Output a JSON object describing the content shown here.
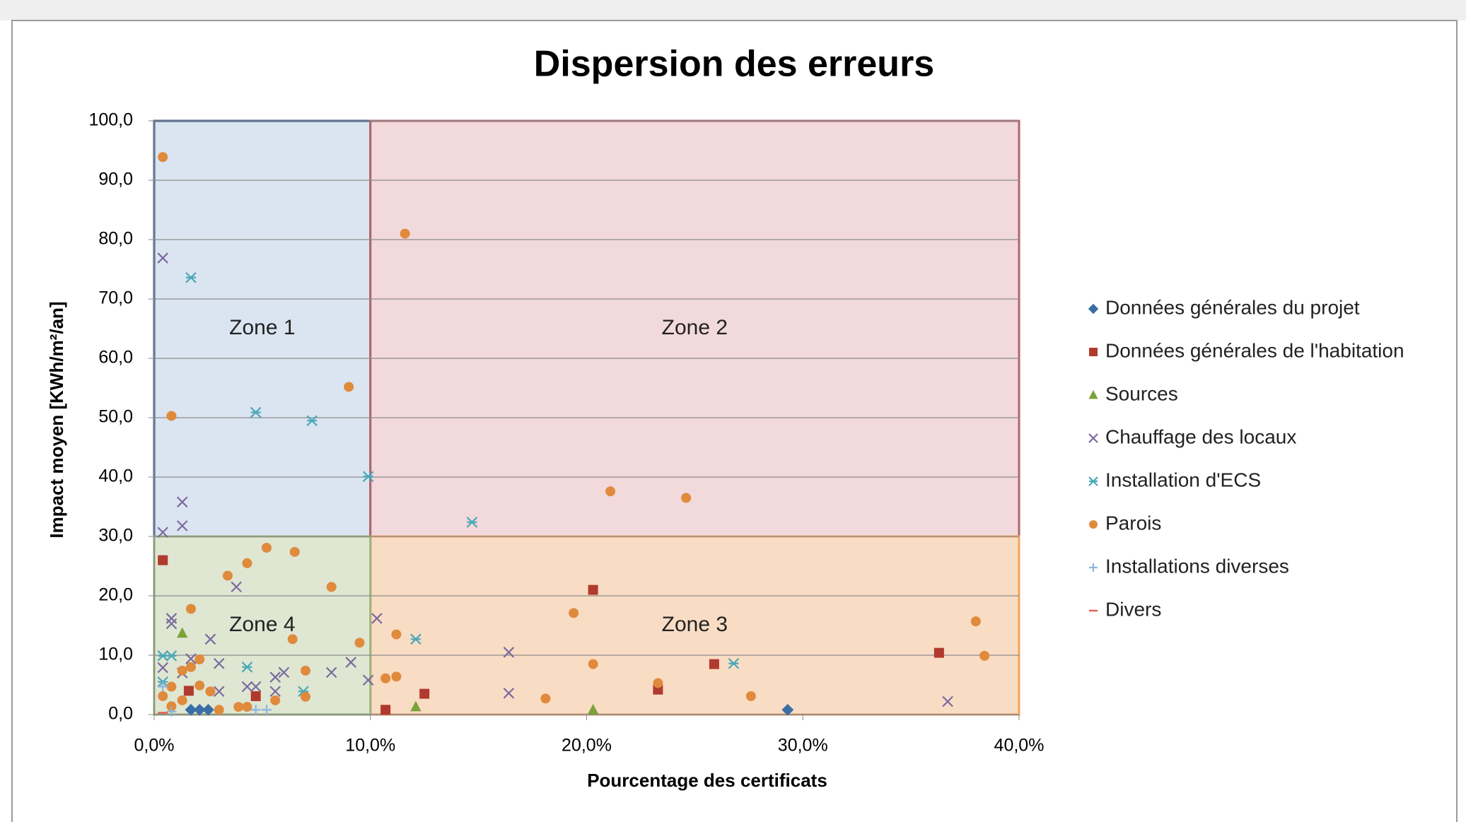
{
  "chart_data": {
    "type": "scatter",
    "title": "Dispersion des erreurs",
    "xlabel": "Pourcentage des certificats",
    "ylabel": "Impact moyen [KWh/m²/an]",
    "xlim": [
      0,
      40
    ],
    "ylim": [
      0,
      100
    ],
    "xticks": [
      {
        "value": 0,
        "label": "0,0%"
      },
      {
        "value": 10,
        "label": "10,0%"
      },
      {
        "value": 20,
        "label": "20,0%"
      },
      {
        "value": 30,
        "label": "30,0%"
      },
      {
        "value": 40,
        "label": "40,0%"
      }
    ],
    "yticks": [
      {
        "value": 0,
        "label": "0,0"
      },
      {
        "value": 10,
        "label": "10,0"
      },
      {
        "value": 20,
        "label": "20,0"
      },
      {
        "value": 30,
        "label": "30,0"
      },
      {
        "value": 40,
        "label": "40,0"
      },
      {
        "value": 50,
        "label": "50,0"
      },
      {
        "value": 60,
        "label": "60,0"
      },
      {
        "value": 70,
        "label": "70,0"
      },
      {
        "value": 80,
        "label": "80,0"
      },
      {
        "value": 90,
        "label": "90,0"
      },
      {
        "value": 100,
        "label": "100,0"
      }
    ],
    "grid": true,
    "legend": "right",
    "zones": [
      {
        "label": "Zone 1",
        "x": [
          0,
          10
        ],
        "y": [
          30,
          100
        ],
        "color": "#dbe5f1",
        "border": "#2e4f8a"
      },
      {
        "label": "Zone 2",
        "x": [
          10,
          40
        ],
        "y": [
          30,
          100
        ],
        "color": "#f2d9dc",
        "border": "#b0646a"
      },
      {
        "label": "Zone 3",
        "x": [
          10,
          40
        ],
        "y": [
          0,
          30
        ],
        "color": "#f9dcc4",
        "border": "#f5a35f"
      },
      {
        "label": "Zone 4",
        "x": [
          0,
          10
        ],
        "y": [
          0,
          30
        ],
        "color": "#dfe6d2",
        "border": "#9bb27a"
      }
    ],
    "series": [
      {
        "name": "Données générales du projet",
        "color": "#3a6ea5",
        "marker": "diamond",
        "x": [
          1.7,
          2.1,
          2.5,
          29.3
        ],
        "values": [
          0.8,
          0.8,
          0.8,
          0.8
        ]
      },
      {
        "name": "Données générales de l'habitation",
        "color": "#b03a2e",
        "marker": "square",
        "x": [
          0.4,
          1.6,
          4.7,
          10.7,
          12.5,
          20.3,
          23.3,
          25.9,
          36.3
        ],
        "values": [
          26,
          4,
          3.1,
          0.8,
          3.5,
          21,
          4.2,
          8.5,
          10.4
        ]
      },
      {
        "name": "Sources",
        "color": "#7aa33a",
        "marker": "triangle",
        "x": [
          1.3,
          12.1,
          20.3
        ],
        "values": [
          13.7,
          1.3,
          0.8
        ]
      },
      {
        "name": "Chauffage des locaux",
        "color": "#7b6a9e",
        "marker": "x",
        "x": [
          0.4,
          1.3,
          1.3,
          0.4,
          3.8,
          0.8,
          0.8,
          2.6,
          0.4,
          1.7,
          3.0,
          1.3,
          4.3,
          4.7,
          5.6,
          5.6,
          6.0,
          8.2,
          9.1,
          9.9,
          10.3,
          16.4,
          16.4,
          36.7,
          3.0
        ],
        "values": [
          76.9,
          35.8,
          31.8,
          30.7,
          21.5,
          16.2,
          15.3,
          12.7,
          7.9,
          9.4,
          8.6,
          7,
          4.7,
          4.7,
          3.9,
          6.3,
          7.1,
          7.1,
          8.8,
          5.8,
          16.2,
          10.5,
          3.6,
          2.2,
          3.9
        ]
      },
      {
        "name": "Installation d'ECS",
        "color": "#4aa8b8",
        "marker": "asterisk",
        "x": [
          1.7,
          4.7,
          7.3,
          9.9,
          14.7,
          0.4,
          0.8,
          4.3,
          12.1,
          6.9,
          26.8,
          0.4
        ],
        "values": [
          73.6,
          50.9,
          49.5,
          40.1,
          32.4,
          9.9,
          9.9,
          8,
          12.7,
          3.9,
          8.6,
          5.5
        ]
      },
      {
        "name": "Parois",
        "color": "#e08a3c",
        "marker": "circle",
        "x": [
          0.4,
          11.6,
          9.0,
          0.8,
          21.1,
          24.6,
          5.2,
          6.5,
          4.3,
          3.4,
          8.2,
          1.7,
          6.4,
          9.5,
          11.2,
          19.4,
          38.0,
          38.4,
          2.1,
          1.3,
          1.7,
          7.0,
          11.2,
          10.7,
          20.3,
          23.3,
          18.1,
          27.6,
          7.0,
          5.6,
          2.6,
          0.4,
          0.8,
          1.3,
          3.9,
          4.3,
          3.0,
          2.1,
          0.8
        ],
        "values": [
          93.9,
          81,
          55.2,
          50.3,
          37.6,
          36.5,
          28.1,
          27.4,
          25.5,
          23.4,
          21.5,
          17.8,
          12.7,
          12.1,
          13.5,
          17.1,
          15.7,
          9.9,
          9.3,
          7.4,
          8,
          7.4,
          6.4,
          6.1,
          8.5,
          5.3,
          2.7,
          3.1,
          3,
          2.4,
          3.9,
          3.1,
          1.4,
          2.4,
          1.3,
          1.3,
          0.8,
          4.9,
          4.7
        ]
      },
      {
        "name": "Installations diverses",
        "color": "#8fb4e0",
        "marker": "plus",
        "x": [
          0.4,
          4.7,
          5.2,
          0.8
        ],
        "values": [
          4.7,
          0.8,
          0.8,
          0.5
        ]
      },
      {
        "name": "Divers",
        "color": "#e06050",
        "marker": "dash",
        "x": [
          0.4
        ],
        "values": [
          0.3
        ]
      }
    ]
  }
}
